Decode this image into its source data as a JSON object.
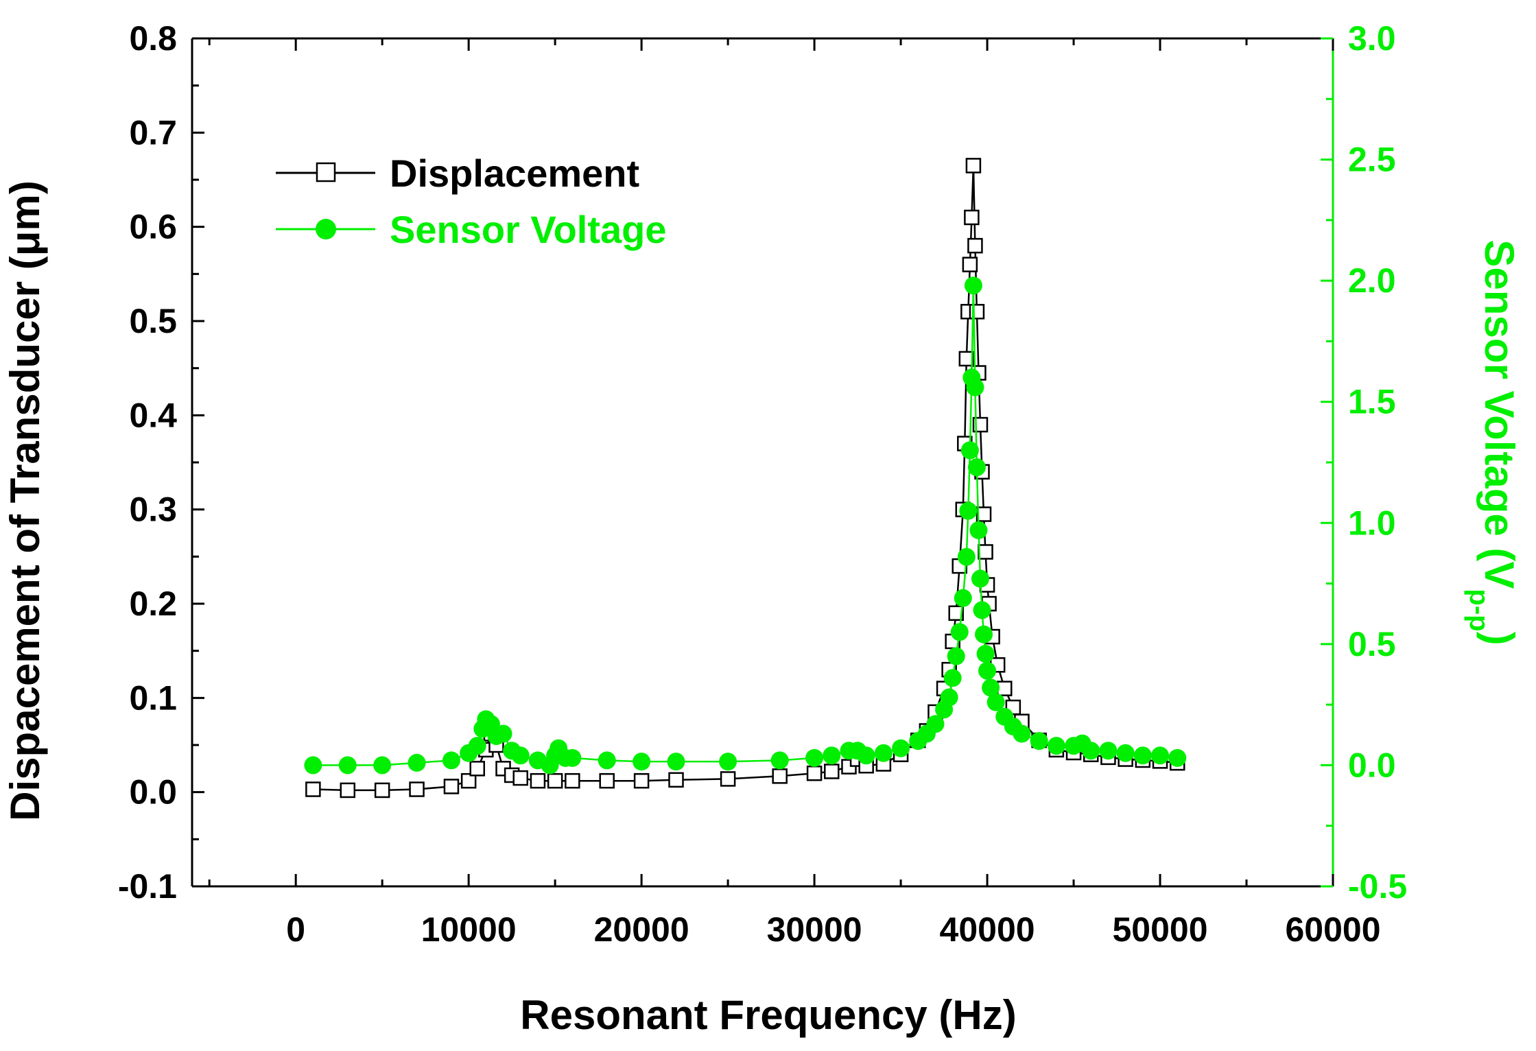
{
  "chart_data": {
    "type": "line",
    "title": "",
    "xlabel": "Resonant Frequency (Hz)",
    "ylabel_left": "Dispacement of Transducer (μm)",
    "ylabel_right_main": "Sensor Voltage (V",
    "ylabel_right_sub": "p-p",
    "ylabel_right_close": ")",
    "xlim": [
      -6000,
      60000
    ],
    "ylim_left": [
      -0.1,
      0.8
    ],
    "ylim_right": [
      -0.5,
      3.0
    ],
    "x_ticks": [
      0,
      10000,
      20000,
      30000,
      40000,
      50000,
      60000
    ],
    "x_tick_labels": [
      "0",
      "10000",
      "20000",
      "30000",
      "40000",
      "50000",
      "60000"
    ],
    "y_left_ticks": [
      -0.1,
      0.0,
      0.1,
      0.2,
      0.3,
      0.4,
      0.5,
      0.6,
      0.7,
      0.8
    ],
    "y_left_tick_labels": [
      "-0.1",
      "0.0",
      "0.1",
      "0.2",
      "0.3",
      "0.4",
      "0.5",
      "0.6",
      "0.7",
      "0.8"
    ],
    "y_right_ticks": [
      -0.5,
      0.0,
      0.5,
      1.0,
      1.5,
      2.0,
      2.5,
      3.0
    ],
    "y_right_tick_labels": [
      "-0.5",
      "0.0",
      "0.5",
      "1.0",
      "1.5",
      "2.0",
      "2.5",
      "3.0"
    ],
    "legend_position": "top-left",
    "series": [
      {
        "name": "Displacement",
        "axis": "left",
        "color": "#000000",
        "marker": "open-square",
        "x": [
          1000,
          3000,
          5000,
          7000,
          9000,
          10000,
          10500,
          11000,
          11300,
          11600,
          12000,
          12500,
          13000,
          14000,
          15000,
          16000,
          18000,
          20000,
          22000,
          25000,
          28000,
          30000,
          31000,
          32000,
          32500,
          33000,
          34000,
          35000,
          36000,
          36500,
          37000,
          37500,
          37800,
          38000,
          38200,
          38400,
          38600,
          38700,
          38800,
          38900,
          39000,
          39100,
          39200,
          39300,
          39400,
          39500,
          39600,
          39700,
          39800,
          39900,
          40000,
          40100,
          40300,
          40600,
          41000,
          41500,
          42000,
          43000,
          44000,
          45000,
          46000,
          47000,
          48000,
          49000,
          50000,
          51000
        ],
        "y": [
          0.003,
          0.002,
          0.002,
          0.003,
          0.006,
          0.012,
          0.025,
          0.045,
          0.062,
          0.05,
          0.025,
          0.018,
          0.015,
          0.012,
          0.012,
          0.012,
          0.012,
          0.012,
          0.013,
          0.014,
          0.017,
          0.02,
          0.022,
          0.027,
          0.035,
          0.028,
          0.03,
          0.04,
          0.055,
          0.065,
          0.085,
          0.11,
          0.13,
          0.16,
          0.19,
          0.24,
          0.3,
          0.37,
          0.46,
          0.51,
          0.56,
          0.61,
          0.665,
          0.58,
          0.51,
          0.445,
          0.39,
          0.34,
          0.295,
          0.255,
          0.22,
          0.2,
          0.165,
          0.135,
          0.11,
          0.09,
          0.075,
          0.055,
          0.045,
          0.042,
          0.04,
          0.037,
          0.035,
          0.034,
          0.033,
          0.031
        ]
      },
      {
        "name": "Sensor Voltage",
        "axis": "right",
        "color": "#00ee00",
        "marker": "filled-circle",
        "x": [
          1000,
          3000,
          5000,
          7000,
          9000,
          10000,
          10500,
          10800,
          11000,
          11300,
          11600,
          12000,
          12500,
          13000,
          14000,
          14700,
          15000,
          15200,
          15600,
          16000,
          18000,
          20000,
          22000,
          25000,
          28000,
          30000,
          31000,
          32000,
          32500,
          33000,
          34000,
          35000,
          36000,
          36500,
          37000,
          37500,
          37800,
          38000,
          38200,
          38400,
          38600,
          38800,
          38900,
          39000,
          39100,
          39200,
          39300,
          39400,
          39500,
          39600,
          39700,
          39800,
          39900,
          40000,
          40200,
          40500,
          41000,
          41500,
          42000,
          43000,
          44000,
          45000,
          45500,
          46000,
          47000,
          48000,
          49000,
          50000,
          51000
        ],
        "y": [
          0.0,
          0.0,
          0.0,
          0.01,
          0.02,
          0.05,
          0.08,
          0.15,
          0.19,
          0.17,
          0.12,
          0.13,
          0.06,
          0.04,
          0.02,
          0.0,
          0.04,
          0.07,
          0.03,
          0.03,
          0.02,
          0.015,
          0.015,
          0.015,
          0.02,
          0.03,
          0.04,
          0.06,
          0.06,
          0.04,
          0.05,
          0.07,
          0.1,
          0.13,
          0.17,
          0.23,
          0.28,
          0.36,
          0.45,
          0.55,
          0.69,
          0.86,
          1.05,
          1.3,
          1.6,
          1.98,
          1.56,
          1.23,
          0.97,
          0.77,
          0.64,
          0.54,
          0.46,
          0.39,
          0.32,
          0.26,
          0.2,
          0.16,
          0.13,
          0.1,
          0.08,
          0.08,
          0.09,
          0.06,
          0.06,
          0.05,
          0.04,
          0.04,
          0.03
        ]
      }
    ]
  }
}
